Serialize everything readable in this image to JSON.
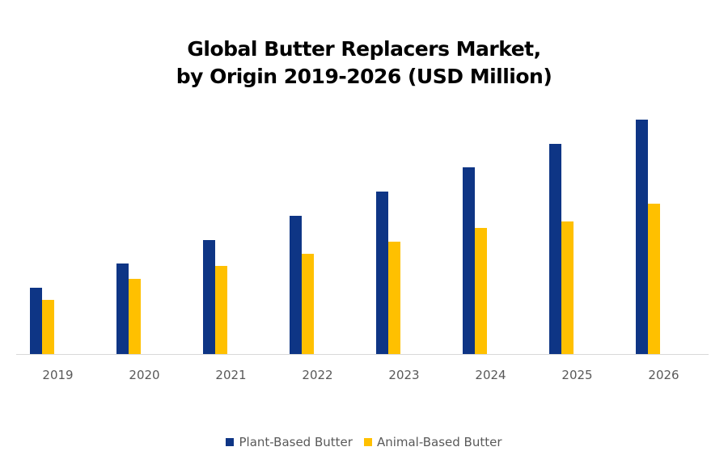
{
  "chart_data": {
    "type": "bar",
    "title_lines": [
      "Global Butter Replacers Market,",
      "by Origin 2019-2026 (USD Million)"
    ],
    "categories": [
      "2019",
      "2020",
      "2021",
      "2022",
      "2023",
      "2024",
      "2025",
      "2026"
    ],
    "series": [
      {
        "name": "Plant-Based Butter",
        "color": "#0e3585",
        "values": [
          82,
          112,
          141,
          171,
          201,
          231,
          260,
          290
        ]
      },
      {
        "name": "Animal-Based Butter",
        "color": "#ffc000",
        "values": [
          67,
          93,
          109,
          124,
          139,
          156,
          164,
          186
        ]
      }
    ],
    "ylim": [
      0,
      290
    ],
    "y_axis_shown": false,
    "grid": false,
    "legend": "bottom"
  }
}
